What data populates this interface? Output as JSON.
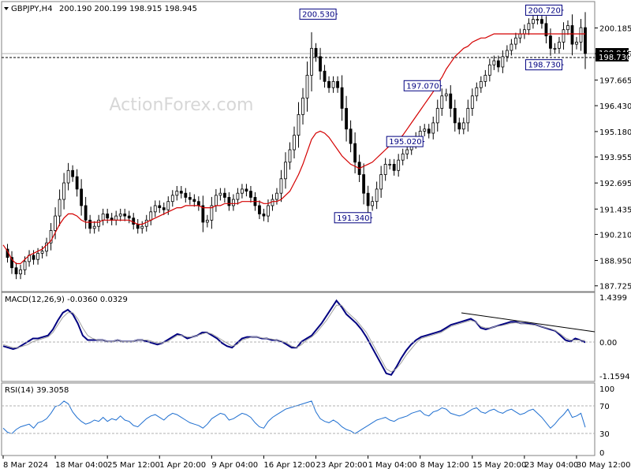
{
  "header": {
    "symbol": "GBPJPY,H4",
    "ohlc": "200.190 200.199 198.915 198.945"
  },
  "watermark": "ActionForex.com",
  "colors": {
    "candle": "#000000",
    "ma": "#d40000",
    "macd": "#000080",
    "signal": "#a0a0a0",
    "rsi": "#1f6fd0",
    "price_tag_bg": "#000000",
    "price_tag_fg": "#ffffff",
    "annotation_box": "#000080"
  },
  "price_axis": {
    "ticks": [
      "200.185",
      "198.945",
      "197.665",
      "196.430",
      "195.180",
      "193.955",
      "192.695",
      "191.435",
      "190.210",
      "188.950",
      "187.725"
    ],
    "current_price": "198.945",
    "level_tag": "198.730"
  },
  "annotations": [
    {
      "label": "200.530",
      "value": 200.53
    },
    {
      "label": "200.720",
      "value": 200.72
    },
    {
      "label": "198.730",
      "value": 198.73
    },
    {
      "label": "197.070",
      "value": 197.07
    },
    {
      "label": "195.020",
      "value": 195.02
    },
    {
      "label": "191.340",
      "value": 191.34
    }
  ],
  "macd_panel": {
    "title": "MACD(12,26,9) -0.0360 0.0329",
    "ticks": [
      "1.4399",
      "0.00",
      "-1.1594"
    ]
  },
  "rsi_panel": {
    "title": "RSI(14) 39.3058",
    "ticks": [
      "100",
      "70",
      "30",
      "0"
    ]
  },
  "time_axis": {
    "labels": [
      "8 Mar 2024",
      "18 Mar 04:00",
      "25 Mar 12:00",
      "1 Apr 20:00",
      "9 Apr 04:00",
      "16 Apr 12:00",
      "23 Apr 20:00",
      "1 May 04:00",
      "8 May 12:00",
      "15 May 20:00",
      "23 May 04:00",
      "30 May 12:00"
    ]
  },
  "chart_data": [
    {
      "type": "candlestick",
      "title": "GBPJPY,H4",
      "ylim": [
        187.6,
        200.85
      ],
      "series": [
        {
          "name": "",
          "values": [
            189.5,
            189.1,
            188.6,
            188.3,
            188.5,
            188.9,
            189.2,
            189.0,
            189.3,
            189.4,
            189.8,
            190.4,
            191.1,
            191.9,
            192.7,
            193.3,
            193.0,
            192.4,
            191.6,
            190.9,
            190.5,
            190.6,
            190.9,
            191.2,
            191.0,
            190.9,
            191.1,
            191.2,
            191.1,
            191.0,
            190.7,
            190.5,
            190.6,
            190.9,
            191.3,
            191.6,
            191.5,
            191.4,
            191.8,
            192.1,
            192.3,
            192.2,
            192.0,
            191.9,
            191.8,
            191.6,
            190.8,
            190.9,
            191.6,
            192.1,
            192.2,
            192.0,
            191.6,
            191.9,
            192.2,
            192.4,
            192.3,
            192.0,
            191.6,
            191.2,
            191.1,
            191.6,
            191.9,
            192.2,
            192.9,
            193.7,
            194.3,
            195.0,
            196.0,
            196.8,
            197.9,
            199.2,
            198.8,
            198.1,
            197.6,
            197.3,
            197.6,
            197.3,
            196.3,
            195.3,
            194.6,
            193.7,
            193.1,
            192.2,
            191.6,
            191.8,
            192.4,
            193.1,
            193.6,
            193.6,
            193.3,
            193.8,
            194.1,
            194.3,
            194.6,
            194.9,
            195.2,
            195.3,
            195.1,
            195.6,
            196.3,
            196.9,
            197.0,
            196.3,
            195.6,
            195.3,
            195.6,
            196.3,
            196.9,
            197.3,
            197.6,
            197.9,
            198.4,
            198.6,
            198.3,
            198.8,
            199.1,
            199.4,
            199.7,
            199.9,
            200.1,
            200.4,
            200.6,
            200.6,
            200.4,
            199.8,
            199.2,
            199.2,
            199.5,
            200.1,
            200.3,
            199.4,
            199.5,
            200.2,
            198.95
          ]
        },
        {
          "name": "",
          "values": [
            189.7,
            189.4,
            189.0,
            188.8,
            188.8,
            189.0,
            189.2,
            189.3,
            189.4,
            189.5,
            189.7,
            189.9,
            190.3,
            190.7,
            191.0,
            191.2,
            191.2,
            191.1,
            190.9,
            190.8,
            190.8,
            190.8,
            190.8,
            190.9,
            190.9,
            190.9,
            190.9,
            190.9,
            190.9,
            190.9,
            190.8,
            190.7,
            190.7,
            190.8,
            190.9,
            191.0,
            191.1,
            191.2,
            191.3,
            191.4,
            191.5,
            191.5,
            191.6,
            191.6,
            191.6,
            191.6,
            191.5,
            191.5,
            191.5,
            191.6,
            191.6,
            191.7,
            191.7,
            191.7,
            191.7,
            191.8,
            191.8,
            191.8,
            191.8,
            191.8,
            191.7,
            191.7,
            191.8,
            191.8,
            191.9,
            192.1,
            192.3,
            192.7,
            193.1,
            193.6,
            194.2,
            194.8,
            195.1,
            195.2,
            195.1,
            194.9,
            194.6,
            194.3,
            194.0,
            193.8,
            193.6,
            193.5,
            193.4,
            193.5,
            193.6,
            193.7,
            193.9,
            194.1,
            194.3,
            194.5,
            194.6,
            194.8,
            195.0,
            195.3,
            195.6,
            195.9,
            196.2,
            196.5,
            196.8,
            197.1,
            197.5,
            197.8,
            198.2,
            198.5,
            198.8,
            199.0,
            199.2,
            199.3,
            199.5,
            199.6,
            199.7,
            199.7,
            199.8,
            199.9,
            199.9,
            199.9,
            199.9,
            199.9,
            199.9,
            199.9,
            199.9,
            199.9,
            199.9,
            199.9,
            199.9,
            199.9,
            199.9,
            199.9,
            199.9,
            199.9,
            199.9,
            199.9,
            199.9,
            199.9,
            199.9
          ]
        }
      ]
    },
    {
      "type": "line",
      "title": "MACD(12,26,9) -0.0360 0.0329",
      "ylim": [
        -1.1594,
        1.4399
      ],
      "series": [
        {
          "name": "",
          "values": [
            -0.15,
            -0.2,
            -0.25,
            -0.2,
            -0.1,
            0.0,
            0.1,
            0.1,
            0.15,
            0.2,
            0.4,
            0.7,
            0.95,
            1.05,
            0.9,
            0.6,
            0.2,
            0.05,
            0.05,
            0.05,
            0.05,
            0.0,
            0.0,
            0.05,
            0.0,
            0.0,
            0.0,
            0.05,
            0.05,
            0.0,
            -0.05,
            -0.1,
            -0.05,
            0.05,
            0.15,
            0.25,
            0.2,
            0.1,
            0.15,
            0.2,
            0.3,
            0.3,
            0.2,
            0.1,
            -0.05,
            -0.15,
            -0.2,
            -0.05,
            0.1,
            0.15,
            0.15,
            0.15,
            0.1,
            0.1,
            0.05,
            0.05,
            0.0,
            -0.1,
            -0.2,
            -0.2,
            0.0,
            0.1,
            0.2,
            0.4,
            0.6,
            0.85,
            1.1,
            1.35,
            1.15,
            0.9,
            0.75,
            0.6,
            0.4,
            0.15,
            -0.15,
            -0.45,
            -0.75,
            -1.05,
            -1.1,
            -0.85,
            -0.55,
            -0.3,
            -0.1,
            0.05,
            0.15,
            0.2,
            0.25,
            0.3,
            0.35,
            0.45,
            0.55,
            0.6,
            0.65,
            0.7,
            0.75,
            0.65,
            0.45,
            0.4,
            0.45,
            0.5,
            0.55,
            0.6,
            0.65,
            0.65,
            0.6,
            0.6,
            0.58,
            0.55,
            0.5,
            0.45,
            0.4,
            0.35,
            0.2,
            0.05,
            0.0,
            0.1,
            0.05,
            -0.03
          ]
        },
        {
          "name": "",
          "values": [
            -0.1,
            -0.15,
            -0.2,
            -0.2,
            -0.15,
            -0.1,
            0.0,
            0.05,
            0.1,
            0.15,
            0.3,
            0.55,
            0.8,
            0.95,
            0.95,
            0.75,
            0.45,
            0.2,
            0.1,
            0.05,
            0.05,
            0.0,
            0.0,
            0.05,
            0.0,
            0.0,
            0.0,
            0.05,
            0.05,
            0.05,
            0.0,
            -0.05,
            -0.05,
            0.0,
            0.1,
            0.2,
            0.2,
            0.15,
            0.15,
            0.2,
            0.25,
            0.3,
            0.25,
            0.15,
            0.05,
            -0.05,
            -0.15,
            -0.1,
            0.05,
            0.1,
            0.15,
            0.15,
            0.12,
            0.1,
            0.08,
            0.05,
            0.02,
            -0.05,
            -0.15,
            -0.2,
            -0.1,
            0.05,
            0.15,
            0.3,
            0.5,
            0.7,
            0.95,
            1.2,
            1.2,
            1.0,
            0.85,
            0.7,
            0.5,
            0.3,
            0.0,
            -0.3,
            -0.6,
            -0.9,
            -1.0,
            -0.9,
            -0.7,
            -0.45,
            -0.25,
            -0.05,
            0.1,
            0.15,
            0.2,
            0.25,
            0.3,
            0.4,
            0.5,
            0.55,
            0.6,
            0.65,
            0.7,
            0.65,
            0.5,
            0.45,
            0.45,
            0.5,
            0.52,
            0.56,
            0.6,
            0.62,
            0.6,
            0.58,
            0.56,
            0.54,
            0.5,
            0.46,
            0.42,
            0.36,
            0.25,
            0.12,
            0.05,
            0.05,
            0.05,
            0.03
          ]
        }
      ]
    },
    {
      "type": "line",
      "title": "RSI(14) 39.3058",
      "ylim": [
        0,
        100
      ],
      "series": [
        {
          "name": "",
          "values": [
            38,
            32,
            30,
            36,
            40,
            42,
            44,
            38,
            46,
            48,
            52,
            60,
            70,
            72,
            78,
            74,
            62,
            54,
            48,
            44,
            46,
            50,
            48,
            54,
            48,
            52,
            50,
            56,
            50,
            48,
            42,
            40,
            46,
            52,
            56,
            58,
            54,
            50,
            56,
            60,
            58,
            54,
            50,
            46,
            44,
            42,
            38,
            44,
            52,
            56,
            60,
            58,
            50,
            52,
            56,
            60,
            58,
            54,
            46,
            40,
            38,
            48,
            54,
            58,
            62,
            66,
            68,
            70,
            72,
            74,
            76,
            78,
            62,
            52,
            48,
            46,
            50,
            46,
            40,
            36,
            34,
            30,
            34,
            38,
            42,
            46,
            50,
            52,
            54,
            50,
            48,
            52,
            54,
            56,
            60,
            62,
            64,
            58,
            56,
            62,
            64,
            68,
            66,
            60,
            58,
            56,
            58,
            62,
            66,
            68,
            62,
            60,
            64,
            66,
            62,
            60,
            64,
            66,
            62,
            58,
            60,
            64,
            66,
            60,
            54,
            46,
            38,
            44,
            52,
            58,
            66,
            54,
            56,
            60,
            39.3
          ]
        }
      ]
    }
  ]
}
